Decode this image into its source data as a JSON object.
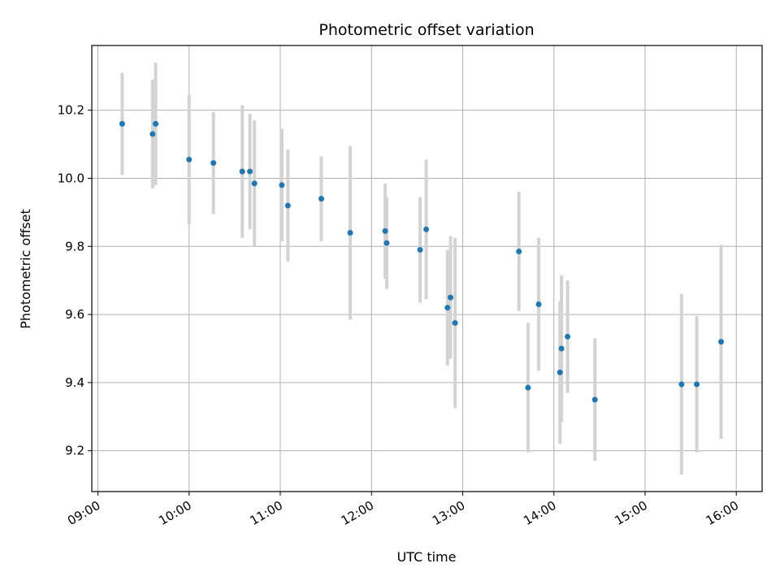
{
  "chart_data": {
    "type": "scatter",
    "title": "Photometric offset variation",
    "xlabel": "UTC time",
    "ylabel": "Photometric offset",
    "x_ticks": [
      "09:00",
      "10:00",
      "11:00",
      "12:00",
      "13:00",
      "14:00",
      "15:00",
      "16:00"
    ],
    "y_ticks": [
      "9.2",
      "9.4",
      "9.6",
      "9.8",
      "10.0",
      "10.2"
    ],
    "xlim": [
      "08:56",
      "16:17"
    ],
    "ylim": [
      9.08,
      10.39
    ],
    "grid": true,
    "marker_color": "#1f77b4",
    "errorbar_color": "#d3d3d3",
    "points": [
      {
        "time": "09:16",
        "value": 10.16,
        "error": 0.15
      },
      {
        "time": "09:36",
        "value": 10.13,
        "error": 0.16
      },
      {
        "time": "09:38",
        "value": 10.16,
        "error": 0.18
      },
      {
        "time": "10:00",
        "value": 10.055,
        "error": 0.19
      },
      {
        "time": "10:16",
        "value": 10.045,
        "error": 0.15
      },
      {
        "time": "10:35",
        "value": 10.02,
        "error": 0.195
      },
      {
        "time": "10:40",
        "value": 10.02,
        "error": 0.17
      },
      {
        "time": "10:43",
        "value": 9.985,
        "error": 0.185
      },
      {
        "time": "11:01",
        "value": 9.98,
        "error": 0.165
      },
      {
        "time": "11:05",
        "value": 9.92,
        "error": 0.165
      },
      {
        "time": "11:27",
        "value": 9.94,
        "error": 0.125
      },
      {
        "time": "11:46",
        "value": 9.84,
        "error": 0.255
      },
      {
        "time": "12:09",
        "value": 9.845,
        "error": 0.14
      },
      {
        "time": "12:10",
        "value": 9.81,
        "error": 0.135
      },
      {
        "time": "12:32",
        "value": 9.79,
        "error": 0.155
      },
      {
        "time": "12:36",
        "value": 9.85,
        "error": 0.205
      },
      {
        "time": "12:50",
        "value": 9.62,
        "error": 0.17
      },
      {
        "time": "12:52",
        "value": 9.65,
        "error": 0.18
      },
      {
        "time": "12:55",
        "value": 9.575,
        "error": 0.25
      },
      {
        "time": "13:37",
        "value": 9.785,
        "error": 0.175
      },
      {
        "time": "13:43",
        "value": 9.385,
        "error": 0.19
      },
      {
        "time": "13:50",
        "value": 9.63,
        "error": 0.195
      },
      {
        "time": "14:04",
        "value": 9.43,
        "error": 0.21
      },
      {
        "time": "14:05",
        "value": 9.5,
        "error": 0.215
      },
      {
        "time": "14:09",
        "value": 9.535,
        "error": 0.165
      },
      {
        "time": "14:27",
        "value": 9.35,
        "error": 0.18
      },
      {
        "time": "15:24",
        "value": 9.395,
        "error": 0.265
      },
      {
        "time": "15:34",
        "value": 9.395,
        "error": 0.2
      },
      {
        "time": "15:50",
        "value": 9.52,
        "error": 0.285
      }
    ]
  }
}
